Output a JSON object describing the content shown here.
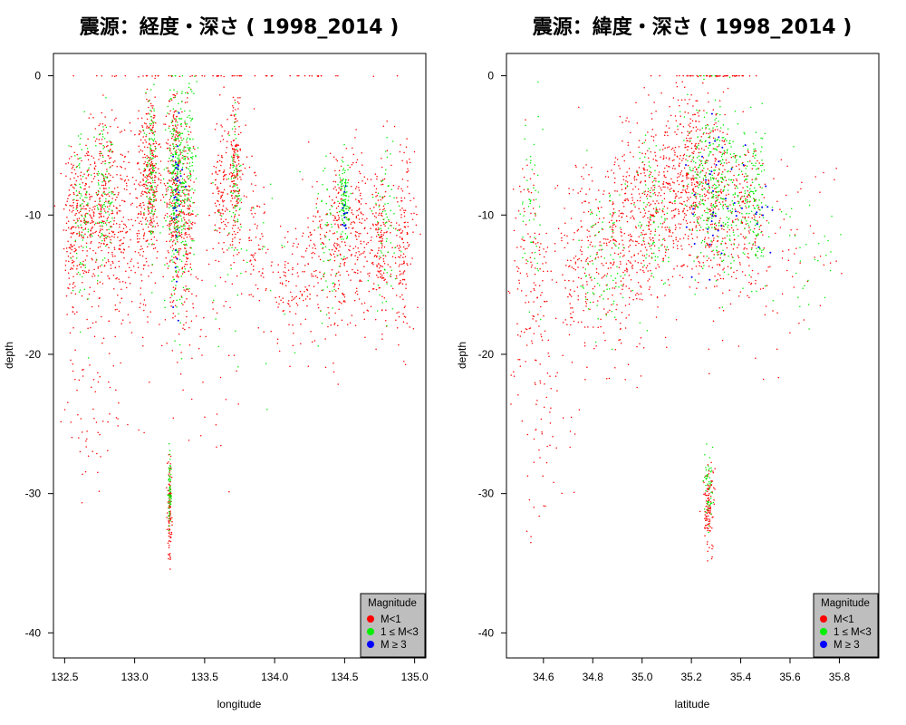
{
  "colors": {
    "m_lt_1": "#ff0000",
    "m_1_3": "#00ee00",
    "m_ge_3": "#0000ff",
    "legend_bg": "#bebebe"
  },
  "chart_data": [
    {
      "type": "scatter",
      "title": "震源：経度・深さ ( 1998_2014 )",
      "xlabel": "longitude",
      "ylabel": "depth",
      "xlim": [
        132.42,
        135.08
      ],
      "ylim": [
        -41.8,
        1.6
      ],
      "xticks": [
        "132.5",
        "133.0",
        "133.5",
        "134.0",
        "134.5",
        "135.0"
      ],
      "xtick_values": [
        132.5,
        133.0,
        133.5,
        134.0,
        134.5,
        135.0
      ],
      "yticks": [
        "0",
        "-10",
        "-20",
        "-30",
        "-40"
      ],
      "ytick_values": [
        0,
        -10,
        -20,
        -30,
        -40
      ],
      "legend": {
        "title": "Magnitude",
        "position": "bottom-right",
        "entries": [
          "M<1",
          "1 ≤ M<3",
          "M ≥ 3"
        ]
      },
      "series": [
        {
          "name": "M<1",
          "clusters": [
            {
              "x": 132.55,
              "y": -11,
              "sx": 0.03,
              "sy": 3.5,
              "n": 120
            },
            {
              "x": 132.65,
              "y": -10,
              "sx": 0.04,
              "sy": 3.0,
              "n": 160
            },
            {
              "x": 132.78,
              "y": -9,
              "sx": 0.04,
              "sy": 3.0,
              "n": 200
            },
            {
              "x": 132.9,
              "y": -11,
              "sx": 0.04,
              "sy": 3.5,
              "n": 140
            },
            {
              "x": 133.05,
              "y": -10,
              "sx": 0.04,
              "sy": 4.0,
              "n": 140
            },
            {
              "x": 133.12,
              "y": -7,
              "sx": 0.03,
              "sy": 3.0,
              "n": 230
            },
            {
              "x": 133.28,
              "y": -8,
              "sx": 0.03,
              "sy": 4.0,
              "n": 260
            },
            {
              "x": 133.37,
              "y": -10,
              "sx": 0.03,
              "sy": 3.5,
              "n": 180
            },
            {
              "x": 133.62,
              "y": -8,
              "sx": 0.03,
              "sy": 3.0,
              "n": 120
            },
            {
              "x": 133.72,
              "y": -7,
              "sx": 0.02,
              "sy": 3.0,
              "n": 160
            },
            {
              "x": 133.85,
              "y": -11,
              "sx": 0.05,
              "sy": 3.0,
              "n": 80
            },
            {
              "x": 134.1,
              "y": -15,
              "sx": 0.06,
              "sy": 2.5,
              "n": 80
            },
            {
              "x": 134.3,
              "y": -13,
              "sx": 0.05,
              "sy": 3.0,
              "n": 100
            },
            {
              "x": 134.45,
              "y": -12,
              "sx": 0.04,
              "sy": 3.5,
              "n": 140
            },
            {
              "x": 134.6,
              "y": -11,
              "sx": 0.04,
              "sy": 3.0,
              "n": 130
            },
            {
              "x": 134.75,
              "y": -12,
              "sx": 0.04,
              "sy": 3.0,
              "n": 160
            },
            {
              "x": 134.92,
              "y": -12,
              "sx": 0.04,
              "sy": 3.5,
              "n": 150
            },
            {
              "x": 133.25,
              "y": -31,
              "sx": 0.008,
              "sy": 1.8,
              "n": 110
            },
            {
              "x": 132.7,
              "y": -22,
              "sx": 0.15,
              "sy": 5.0,
              "n": 90
            },
            {
              "x": 133.5,
              "y": -19,
              "sx": 0.2,
              "sy": 3.5,
              "n": 60
            },
            {
              "x": 133.6,
              "y": 0,
              "sx": 0.7,
              "sy": 0.03,
              "n": 50
            }
          ]
        },
        {
          "name": "1 ≤ M<3",
          "clusters": [
            {
              "x": 132.62,
              "y": -10,
              "sx": 0.03,
              "sy": 3.0,
              "n": 80
            },
            {
              "x": 132.78,
              "y": -9,
              "sx": 0.04,
              "sy": 2.5,
              "n": 100
            },
            {
              "x": 133.12,
              "y": -7,
              "sx": 0.02,
              "sy": 2.5,
              "n": 110
            },
            {
              "x": 133.3,
              "y": -8,
              "sx": 0.035,
              "sy": 3.5,
              "n": 320
            },
            {
              "x": 133.4,
              "y": -6,
              "sx": 0.02,
              "sy": 3.5,
              "n": 80
            },
            {
              "x": 133.72,
              "y": -8,
              "sx": 0.02,
              "sy": 2.5,
              "n": 60
            },
            {
              "x": 134.5,
              "y": -9,
              "sx": 0.015,
              "sy": 1.5,
              "n": 110
            },
            {
              "x": 134.38,
              "y": -12,
              "sx": 0.04,
              "sy": 3.0,
              "n": 50
            },
            {
              "x": 134.8,
              "y": -11,
              "sx": 0.05,
              "sy": 3.0,
              "n": 70
            },
            {
              "x": 133.25,
              "y": -30,
              "sx": 0.006,
              "sy": 1.3,
              "n": 60
            },
            {
              "x": 133.8,
              "y": -14,
              "sx": 0.2,
              "sy": 4.0,
              "n": 40
            }
          ]
        },
        {
          "name": "M ≥ 3",
          "clusters": [
            {
              "x": 133.3,
              "y": -9,
              "sx": 0.02,
              "sy": 3.0,
              "n": 35
            },
            {
              "x": 134.5,
              "y": -10,
              "sx": 0.01,
              "sy": 1.0,
              "n": 12
            }
          ]
        }
      ]
    },
    {
      "type": "scatter",
      "title": "震源：緯度・深さ ( 1998_2014 )",
      "xlabel": "latitude",
      "ylabel": "depth",
      "xlim": [
        34.45,
        35.96
      ],
      "ylim": [
        -41.8,
        1.6
      ],
      "xticks": [
        "34.6",
        "34.8",
        "35.0",
        "35.2",
        "35.4",
        "35.6",
        "35.8"
      ],
      "xtick_values": [
        34.6,
        34.8,
        35.0,
        35.2,
        35.4,
        35.6,
        35.8
      ],
      "yticks": [
        "0",
        "-10",
        "-20",
        "-30",
        "-40"
      ],
      "ytick_values": [
        0,
        -10,
        -20,
        -30,
        -40
      ],
      "legend": {
        "title": "Magnitude",
        "position": "bottom-right",
        "entries": [
          "M<1",
          "1 ≤ M<3",
          "M ≥ 3"
        ]
      },
      "series": [
        {
          "name": "M<1",
          "clusters": [
            {
              "x": 34.55,
              "y": -14,
              "sx": 0.04,
              "sy": 4.0,
              "n": 120
            },
            {
              "x": 34.75,
              "y": -13,
              "sx": 0.05,
              "sy": 3.5,
              "n": 150
            },
            {
              "x": 34.9,
              "y": -12,
              "sx": 0.05,
              "sy": 3.5,
              "n": 200
            },
            {
              "x": 35.0,
              "y": -10,
              "sx": 0.05,
              "sy": 3.5,
              "n": 200
            },
            {
              "x": 35.1,
              "y": -9,
              "sx": 0.05,
              "sy": 3.5,
              "n": 220
            },
            {
              "x": 35.2,
              "y": -7,
              "sx": 0.04,
              "sy": 3.5,
              "n": 260
            },
            {
              "x": 35.3,
              "y": -9,
              "sx": 0.04,
              "sy": 3.5,
              "n": 240
            },
            {
              "x": 35.42,
              "y": -10,
              "sx": 0.04,
              "sy": 3.0,
              "n": 150
            },
            {
              "x": 35.6,
              "y": -12,
              "sx": 0.1,
              "sy": 3.5,
              "n": 60
            },
            {
              "x": 35.27,
              "y": -31,
              "sx": 0.012,
              "sy": 1.6,
              "n": 110
            },
            {
              "x": 34.6,
              "y": -24,
              "sx": 0.08,
              "sy": 5.0,
              "n": 80
            },
            {
              "x": 35.3,
              "y": 0,
              "sx": 0.08,
              "sy": 0.03,
              "n": 40
            }
          ]
        },
        {
          "name": "1 ≤ M<3",
          "clusters": [
            {
              "x": 34.55,
              "y": -10,
              "sx": 0.02,
              "sy": 4.0,
              "n": 50
            },
            {
              "x": 34.85,
              "y": -13,
              "sx": 0.05,
              "sy": 3.0,
              "n": 90
            },
            {
              "x": 35.05,
              "y": -10,
              "sx": 0.04,
              "sy": 3.0,
              "n": 90
            },
            {
              "x": 35.25,
              "y": -8,
              "sx": 0.04,
              "sy": 3.0,
              "n": 160
            },
            {
              "x": 35.33,
              "y": -8,
              "sx": 0.04,
              "sy": 3.0,
              "n": 200
            },
            {
              "x": 35.45,
              "y": -9,
              "sx": 0.03,
              "sy": 2.5,
              "n": 150
            },
            {
              "x": 35.7,
              "y": -13,
              "sx": 0.07,
              "sy": 2.5,
              "n": 30
            },
            {
              "x": 35.27,
              "y": -30,
              "sx": 0.01,
              "sy": 1.2,
              "n": 50
            }
          ]
        },
        {
          "name": "M ≥ 3",
          "clusters": [
            {
              "x": 35.3,
              "y": -9,
              "sx": 0.06,
              "sy": 3.0,
              "n": 40
            },
            {
              "x": 35.48,
              "y": -10,
              "sx": 0.02,
              "sy": 1.5,
              "n": 10
            }
          ]
        }
      ]
    }
  ]
}
